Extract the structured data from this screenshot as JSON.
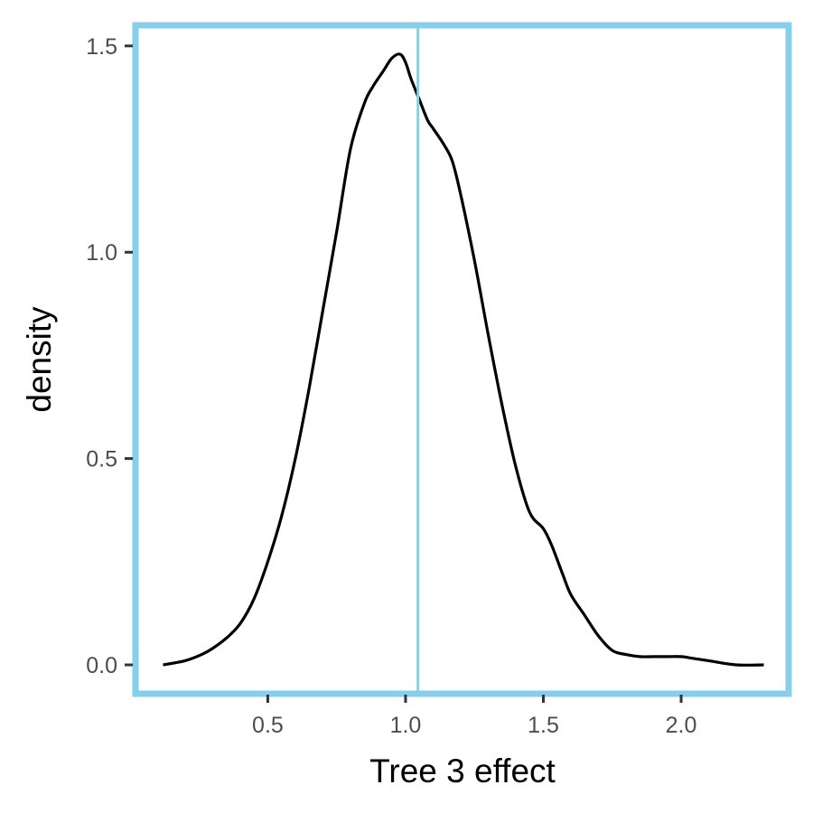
{
  "chart_data": {
    "type": "line",
    "title": "",
    "xlabel": "Tree 3 effect",
    "ylabel": "density",
    "xlim": [
      0.02,
      2.39
    ],
    "ylim": [
      -0.07,
      1.55
    ],
    "x_ticks": [
      0.5,
      1.0,
      1.5,
      2.0
    ],
    "x_tick_labels": [
      "0.5",
      "1.0",
      "1.5",
      "2.0"
    ],
    "y_ticks": [
      0.0,
      0.5,
      1.0,
      1.5
    ],
    "y_tick_labels": [
      "0.0",
      "0.5",
      "1.0",
      "1.5"
    ],
    "grid": false,
    "legend": "none",
    "series": [
      {
        "color": "#000000",
        "x": [
          0.12,
          0.2,
          0.26,
          0.3,
          0.35,
          0.4,
          0.45,
          0.5,
          0.55,
          0.6,
          0.65,
          0.7,
          0.75,
          0.8,
          0.85,
          0.88,
          0.92,
          0.95,
          0.98,
          1.0,
          1.02,
          1.05,
          1.08,
          1.1,
          1.14,
          1.17,
          1.2,
          1.25,
          1.3,
          1.35,
          1.4,
          1.45,
          1.5,
          1.53,
          1.57,
          1.6,
          1.65,
          1.7,
          1.75,
          1.8,
          1.85,
          1.9,
          1.95,
          2.0,
          2.05,
          2.1,
          2.2,
          2.3
        ],
        "y": [
          0.0,
          0.01,
          0.025,
          0.04,
          0.065,
          0.1,
          0.16,
          0.25,
          0.36,
          0.5,
          0.67,
          0.86,
          1.05,
          1.25,
          1.36,
          1.4,
          1.44,
          1.47,
          1.48,
          1.46,
          1.42,
          1.37,
          1.32,
          1.3,
          1.26,
          1.22,
          1.14,
          0.98,
          0.8,
          0.63,
          0.48,
          0.37,
          0.33,
          0.29,
          0.22,
          0.17,
          0.12,
          0.07,
          0.035,
          0.025,
          0.02,
          0.02,
          0.02,
          0.02,
          0.015,
          0.01,
          0.0,
          0.0
        ]
      }
    ],
    "reference_line": {
      "x": 1.045,
      "color": "#87CEEB"
    },
    "panel_border_color": "#87CEEB"
  }
}
